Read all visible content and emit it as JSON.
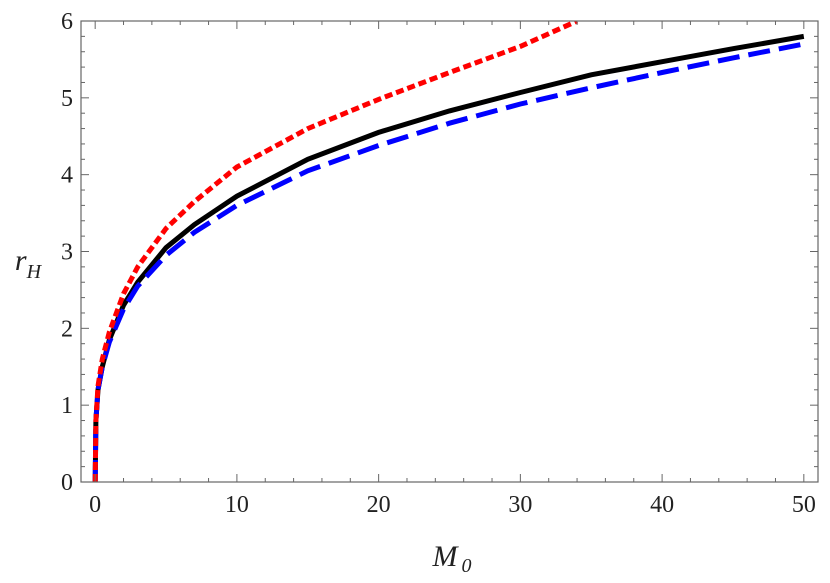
{
  "chart_data": {
    "type": "line",
    "title": "",
    "xlabel": "M",
    "xlabel_sub": "0",
    "ylabel": "r",
    "ylabel_sub": "H",
    "xlim": [
      -1,
      51
    ],
    "ylim": [
      0,
      6
    ],
    "x_ticks": [
      0,
      10,
      20,
      30,
      40,
      50
    ],
    "y_ticks": [
      0,
      1,
      2,
      3,
      4,
      5,
      6
    ],
    "grid": false,
    "legend": "none",
    "series": [
      {
        "style": "solid",
        "color": "#000000",
        "x": [
          0,
          0.05,
          0.2,
          0.5,
          1,
          2,
          3,
          5,
          7,
          10,
          15,
          20,
          25,
          30,
          35,
          40,
          45,
          50
        ],
        "y": [
          0,
          0.8,
          1.2,
          1.5,
          1.85,
          2.3,
          2.6,
          3.05,
          3.35,
          3.72,
          4.2,
          4.55,
          4.83,
          5.07,
          5.3,
          5.47,
          5.64,
          5.8
        ]
      },
      {
        "style": "dashed",
        "color": "#0000ff",
        "x": [
          0,
          0.05,
          0.2,
          0.5,
          1,
          2,
          3,
          5,
          7,
          10,
          15,
          20,
          25,
          30,
          35,
          40,
          45,
          50
        ],
        "y": [
          0,
          0.8,
          1.2,
          1.5,
          1.82,
          2.25,
          2.55,
          2.95,
          3.25,
          3.6,
          4.05,
          4.38,
          4.67,
          4.92,
          5.13,
          5.33,
          5.52,
          5.7
        ]
      },
      {
        "style": "dotted",
        "color": "#ff0000",
        "x": [
          0,
          0.05,
          0.2,
          0.5,
          1,
          2,
          3,
          5,
          7,
          10,
          15,
          20,
          25,
          30,
          34
        ],
        "y": [
          0,
          0.8,
          1.25,
          1.6,
          1.95,
          2.45,
          2.8,
          3.3,
          3.65,
          4.1,
          4.6,
          4.98,
          5.33,
          5.67,
          6.0
        ]
      }
    ]
  }
}
